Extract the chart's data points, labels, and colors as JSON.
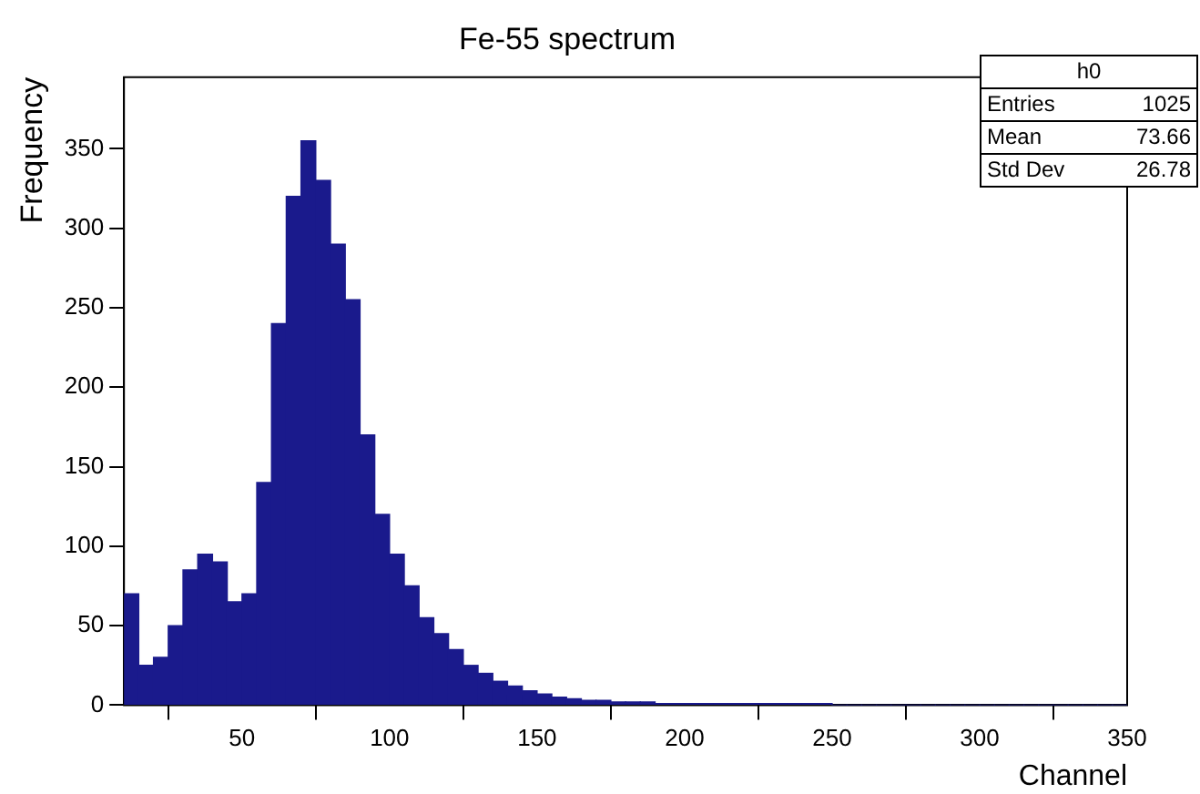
{
  "chart_data": {
    "type": "histogram",
    "title": "Fe-55 spectrum",
    "xlabel": "Channel",
    "ylabel": "Frequency",
    "bins": [
      10,
      15,
      20,
      25,
      30,
      35,
      40,
      45,
      50,
      55,
      60,
      65,
      70,
      75,
      80,
      85,
      90,
      95,
      100,
      105,
      110,
      115,
      120,
      125,
      130,
      135,
      140,
      145,
      150,
      155,
      160,
      165,
      170,
      175,
      180,
      185,
      190,
      195,
      200,
      205,
      210,
      215,
      220,
      225,
      230,
      235,
      240,
      245,
      250,
      255,
      260,
      265,
      270,
      275,
      280,
      285,
      290,
      295,
      300,
      305,
      310,
      315,
      320,
      325,
      330,
      335,
      340,
      345,
      350
    ],
    "values": [
      70,
      25,
      30,
      50,
      85,
      95,
      90,
      65,
      70,
      140,
      240,
      320,
      355,
      330,
      290,
      255,
      170,
      120,
      95,
      75,
      55,
      45,
      35,
      25,
      20,
      15,
      12,
      9,
      7,
      5,
      4,
      3,
      3,
      2,
      2,
      2,
      1,
      1,
      1,
      1,
      1,
      1,
      1,
      1,
      1,
      1,
      1,
      1,
      0,
      0,
      0,
      0,
      0,
      0,
      0,
      0,
      0,
      0,
      0,
      0,
      0,
      0,
      0,
      0,
      0,
      0,
      0,
      0
    ],
    "color": "#1a1a8c",
    "xlim": [
      10,
      350
    ],
    "xticks": [
      50,
      100,
      150,
      200,
      250,
      300,
      350
    ],
    "ylim": [
      0,
      395
    ],
    "yticks": [
      0,
      50,
      100,
      150,
      200,
      250,
      300,
      350
    ],
    "grid": false,
    "legend": false,
    "annotations": [
      "h0",
      "Entries 1025",
      "Mean 73.66",
      "Std Dev 26.78"
    ]
  }
}
